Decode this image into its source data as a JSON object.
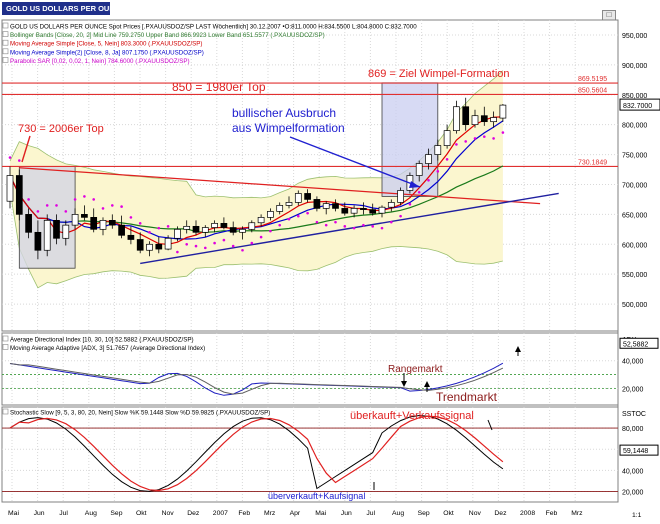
{
  "window": {
    "title": "GOLD US DOLLARS PER OUNCE Spot Prices",
    "title_bg": "#1f2f8a"
  },
  "main": {
    "info_lines": [
      {
        "text": "GOLD US DOLLARS PER OUNCE Spot Prices [.PXAUUSDOZ/SP LAST Wöchentlich] 30.12.2007 •O:811.0000 H:834.5500 L:804.8000 C:832.7000",
        "color": "#000000"
      },
      {
        "text": "Bollinger Bands [Close, 20, 2] Mid Line 759.2750 Upper Band 866.9923 Lower Band 651.5577 (.PXAUUSDOZ/SP)",
        "color": "#2f7a2f"
      },
      {
        "text": "Moving Average Simple [Close, 5, Nein] 803.3000 (.PXAUUSDOZ/SP)",
        "color": "#d00000"
      },
      {
        "text": "Moving Average Simple(2) [Close, 8, Ja] 807.1750 (.PXAUUSDOZ/SP)",
        "color": "#0000c8"
      },
      {
        "text": "Parabolic SAR [0,02, 0,02, 1, Nein] 784.6000 (.PXAUUSDOZ/SP)",
        "color": "#c800c8"
      }
    ],
    "y_ticks": [
      500,
      550,
      600,
      650,
      700,
      750,
      800,
      850,
      900,
      950
    ],
    "y_tick_labels": [
      "500,000",
      "550,000",
      "600,000",
      "650,000",
      "700,000",
      "750,000",
      "800,000",
      "850,000",
      "900,000",
      "950,000"
    ],
    "y_range": [
      455,
      975
    ],
    "hlines": [
      {
        "value": 869.5195,
        "label": "869.5195"
      },
      {
        "value": 850.5604,
        "label": "850.5604"
      },
      {
        "value": 730.1849,
        "label": "730.1849"
      }
    ],
    "last_value": 832.7,
    "last_label": "832.7000",
    "annotations": [
      {
        "text": "869  = Ziel Wimpel-Formation",
        "color": "#e02020"
      },
      {
        "text": "850  = 1980er Top",
        "color": "#e02020"
      },
      {
        "text": "730 = 2006er Top",
        "color": "#e02020"
      },
      {
        "text": "bullischer Ausbruch",
        "color": "#2020d0"
      },
      {
        "text": "aus Wimpelformation",
        "color": "#2020d0"
      }
    ]
  },
  "adx": {
    "info_lines": [
      {
        "text": "Average Directional Index [10, 30, 10] 52.5882 (.PXAUUSDOZ/SP)",
        "color": "#000000"
      },
      {
        "text": "Moving Average Adaptive [ADX, 3] 51.7657 (Average Directional Index)",
        "color": "#000000"
      }
    ],
    "label": "ADX",
    "y_ticks": [
      20,
      40
    ],
    "y_tick_labels": [
      "20,000",
      "40,000"
    ],
    "y_range": [
      8,
      60
    ],
    "last_value": 52.5882,
    "last_label": "52,5882",
    "annotations": [
      {
        "text": "Rangemarkt",
        "color": "#8b1a1a"
      },
      {
        "text": "Trendmarkt",
        "color": "#8b1a1a"
      }
    ]
  },
  "stoch": {
    "info_lines": [
      {
        "text": "Stochastic Slow [9, 5, 3, 80, 20, Nein] Slow %K 59.1448 Slow %D 59.9825 (.PXAUUSDOZ/SP)",
        "color": "#000000"
      }
    ],
    "label": "SSTOC",
    "y_ticks": [
      20,
      40,
      60,
      80
    ],
    "y_tick_labels": [
      "20,000",
      "40,000",
      "60,000",
      "80,000"
    ],
    "y_range": [
      10,
      100
    ],
    "last_value": 59.1448,
    "last_label": "59,1448",
    "annotations": [
      {
        "text": "überkauft+Verkaufssignal",
        "color": "#e02020"
      },
      {
        "text": "überverkauft+Kaufsignal",
        "color": "#2020d0"
      }
    ]
  },
  "x_axis": {
    "labels": [
      "Mai",
      "Jun",
      "Jul",
      "Aug",
      "Sep",
      "Okt",
      "Nov",
      "Dez",
      "2007",
      "Feb",
      "Mrz",
      "Apr",
      "Mai",
      "Jun",
      "Jul",
      "Aug",
      "Sep",
      "Okt",
      "Nov",
      "Dez",
      "2008",
      "Feb",
      "Mrz"
    ],
    "zoom_label": "1:1"
  },
  "chart_data": {
    "type": "candlestick",
    "title": "GOLD US DOLLARS PER OUNCE Spot Prices",
    "frequency": "weekly",
    "series": [
      {
        "name": "GOLD US DOLLARS PER OUNCE Spot Prices [.PXAUUSDOZ/SP LAST Wöchentlich]",
        "ohlc": [
          [
            672,
            730,
            660,
            715
          ],
          [
            715,
            725,
            640,
            650
          ],
          [
            650,
            660,
            610,
            620
          ],
          [
            620,
            640,
            575,
            590
          ],
          [
            590,
            650,
            580,
            640
          ],
          [
            640,
            650,
            600,
            610
          ],
          [
            610,
            640,
            598,
            632
          ],
          [
            632,
            660,
            625,
            650
          ],
          [
            650,
            665,
            640,
            645
          ],
          [
            645,
            660,
            620,
            625
          ],
          [
            625,
            645,
            615,
            640
          ],
          [
            640,
            650,
            626,
            632
          ],
          [
            632,
            648,
            610,
            615
          ],
          [
            615,
            630,
            600,
            608
          ],
          [
            608,
            620,
            585,
            590
          ],
          [
            590,
            605,
            580,
            600
          ],
          [
            600,
            612,
            585,
            592
          ],
          [
            592,
            615,
            590,
            610
          ],
          [
            610,
            630,
            605,
            625
          ],
          [
            625,
            640,
            618,
            630
          ],
          [
            630,
            640,
            615,
            620
          ],
          [
            620,
            632,
            612,
            628
          ],
          [
            628,
            640,
            620,
            635
          ],
          [
            635,
            645,
            625,
            628
          ],
          [
            628,
            638,
            615,
            620
          ],
          [
            620,
            630,
            608,
            625
          ],
          [
            625,
            640,
            620,
            636
          ],
          [
            636,
            650,
            630,
            645
          ],
          [
            645,
            660,
            640,
            655
          ],
          [
            655,
            670,
            650,
            665
          ],
          [
            665,
            680,
            660,
            670
          ],
          [
            670,
            690,
            665,
            685
          ],
          [
            685,
            692,
            670,
            675
          ],
          [
            675,
            680,
            655,
            660
          ],
          [
            660,
            672,
            650,
            668
          ],
          [
            668,
            675,
            655,
            660
          ],
          [
            660,
            670,
            648,
            652
          ],
          [
            652,
            665,
            645,
            660
          ],
          [
            660,
            670,
            650,
            658
          ],
          [
            658,
            668,
            648,
            652
          ],
          [
            652,
            665,
            645,
            662
          ],
          [
            662,
            675,
            655,
            670
          ],
          [
            670,
            695,
            665,
            690
          ],
          [
            690,
            720,
            685,
            715
          ],
          [
            715,
            740,
            705,
            735
          ],
          [
            735,
            760,
            725,
            750
          ],
          [
            750,
            775,
            740,
            765
          ],
          [
            765,
            800,
            760,
            790
          ],
          [
            790,
            840,
            785,
            830
          ],
          [
            830,
            845,
            790,
            800
          ],
          [
            800,
            825,
            795,
            815
          ],
          [
            815,
            830,
            798,
            805
          ],
          [
            805,
            822,
            795,
            812
          ],
          [
            811,
            834.55,
            804.8,
            832.7
          ]
        ]
      },
      {
        "name": "Moving Average Simple [Close, 5, Nein]",
        "last": 803.3
      },
      {
        "name": "Moving Average Simple(2) [Close, 8, Ja]",
        "last": 807.175
      },
      {
        "name": "Bollinger Bands Mid Line [Close, 20, 2]",
        "last": 759.275
      },
      {
        "name": "Bollinger Bands Upper Band",
        "last": 866.9923
      },
      {
        "name": "Bollinger Bands Lower Band",
        "last": 651.5577
      },
      {
        "name": "Parabolic SAR [0,02, 0,02, 1, Nein]",
        "last": 784.6
      },
      {
        "name": "Average Directional Index [10, 30, 10]",
        "last": 52.5882
      },
      {
        "name": "Moving Average Adaptive [ADX, 3]",
        "last": 51.7657
      },
      {
        "name": "Stochastic Slow %K",
        "last": 59.1448
      },
      {
        "name": "Stochastic Slow %D",
        "last": 59.9825
      }
    ],
    "horizontal_lines": [
      869.5195,
      850.5604,
      730.1849
    ],
    "ylim": [
      455,
      975
    ],
    "x_range": [
      "2006-05",
      "2008-03"
    ]
  }
}
